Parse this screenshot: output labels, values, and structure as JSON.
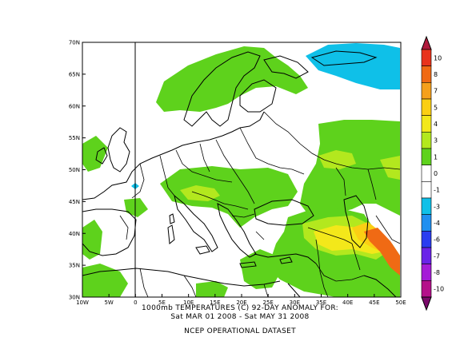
{
  "map": {
    "lat_ticks": [
      "70N",
      "65N",
      "60N",
      "55N",
      "50N",
      "45N",
      "40N",
      "35N",
      "30N"
    ],
    "lon_ticks": [
      "10W",
      "5W",
      "0",
      "5E",
      "10E",
      "15E",
      "20E",
      "25E",
      "30E",
      "35E",
      "40E",
      "45E",
      "50E"
    ],
    "extent": {
      "lon_min": -10,
      "lon_max": 50,
      "lat_min": 30,
      "lat_max": 70
    }
  },
  "colorbar": {
    "labels": [
      "10",
      "8",
      "7",
      "5",
      "4",
      "3",
      "1",
      "0",
      "-1",
      "-3",
      "-4",
      "-6",
      "-7",
      "-8",
      "-10"
    ],
    "colors": [
      "#e8331c",
      "#f06a14",
      "#f5a01c",
      "#fbcf14",
      "#f3e81a",
      "#b3e81e",
      "#5ed21c",
      "#ffffff",
      "#ffffff",
      "#0fc0e8",
      "#1f8ff0",
      "#2a3df0",
      "#6a23e8",
      "#a51cd7",
      "#b4108a"
    ]
  },
  "captions": {
    "line1": "1000mb TEMPERATURES (C)   92-DAY ANOMALY FOR:",
    "line2": "Sat MAR 01 2008 - Sat MAY 31 2008",
    "line3": "NCEP OPERATIONAL DATASET"
  }
}
